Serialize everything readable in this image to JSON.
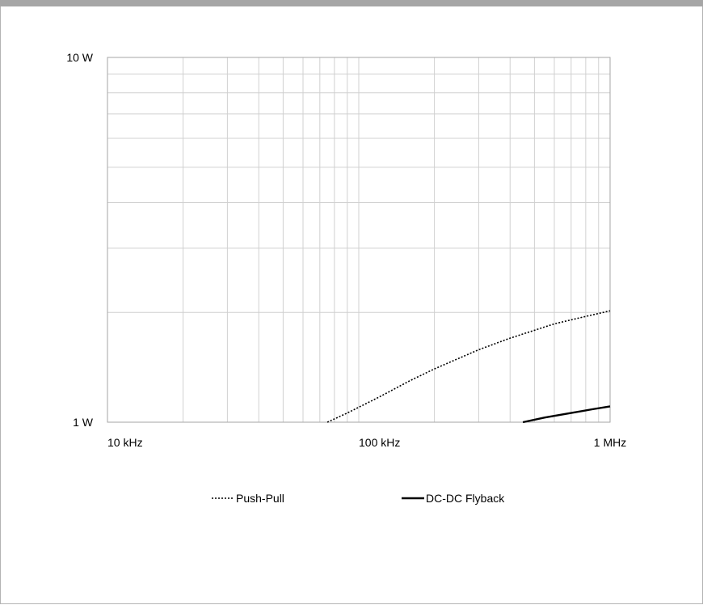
{
  "chart_data": {
    "type": "line",
    "title": "",
    "xlabel": "",
    "ylabel": "",
    "x_scale": "log",
    "y_scale": "log",
    "xlim": [
      10000,
      1000000
    ],
    "ylim": [
      1,
      10
    ],
    "grid": true,
    "x_ticks": [
      {
        "value": 10000,
        "label": "10 kHz"
      },
      {
        "value": 100000,
        "label": "100 kHz"
      },
      {
        "value": 1000000,
        "label": "1 MHz"
      }
    ],
    "y_ticks": [
      {
        "value": 1,
        "label": "1 W"
      },
      {
        "value": 10,
        "label": "10 W"
      }
    ],
    "legend_position": "bottom",
    "series": [
      {
        "name": "Push-Pull",
        "style": "dotted",
        "color": "#000000",
        "x": [
          75000,
          90000,
          120000,
          160000,
          200000,
          300000,
          400000,
          600000,
          800000,
          1000000
        ],
        "y": [
          1.0,
          1.06,
          1.17,
          1.3,
          1.4,
          1.58,
          1.7,
          1.86,
          1.95,
          2.02
        ]
      },
      {
        "name": "DC-DC Flyback",
        "style": "solid",
        "color": "#000000",
        "x": [
          450000,
          550000,
          700000,
          850000,
          1000000
        ],
        "y": [
          1.0,
          1.03,
          1.06,
          1.085,
          1.105
        ]
      }
    ]
  }
}
